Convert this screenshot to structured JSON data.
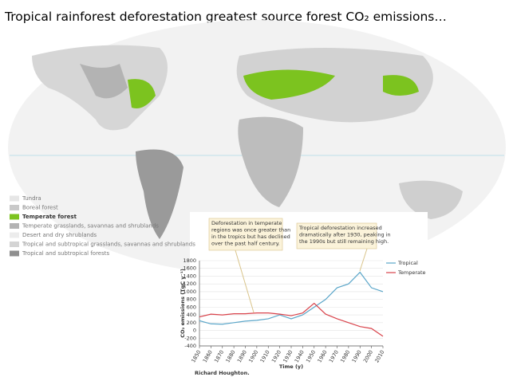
{
  "slide": {
    "title": "Tropical rainforest deforestation greatest source forest CO₂ emissions…"
  },
  "map": {
    "legend": [
      {
        "label": "Tundra",
        "color": "#e6e6e6"
      },
      {
        "label": "Boreal forest",
        "color": "#c9c9c9"
      },
      {
        "label": "Temperate forest",
        "color": "#7cc31f"
      },
      {
        "label": "Temperate grasslands, savannas and shrublands",
        "color": "#b3b3b3"
      },
      {
        "label": "Desert and dry shrublands",
        "color": "#ececec"
      },
      {
        "label": "Tropical and subtropical grasslands, savannas and shrublands",
        "color": "#d4d4d4"
      },
      {
        "label": "Tropical and subtropical forests",
        "color": "#8f8f8f"
      }
    ]
  },
  "chart_data": {
    "type": "line",
    "annotations": [
      [
        "Deforestation in temperate",
        "regions was once greater than",
        "in the tropics but has declined",
        "over the past half century."
      ],
      [
        "Tropical deforestation increased",
        "dramatically after 1930, peaking in",
        "the 1990s but still remaining high."
      ]
    ],
    "x_label": "Time (y)",
    "y_label": "CO₂ emissions (TgC y⁻¹)",
    "credit": "Richard Houghton.",
    "x": [
      1850,
      1860,
      1870,
      1880,
      1890,
      1900,
      1910,
      1920,
      1930,
      1940,
      1950,
      1960,
      1970,
      1980,
      1990,
      2000,
      2010
    ],
    "series": [
      {
        "name": "Tropical",
        "color": "#5ba6c9",
        "values": [
          250,
          170,
          160,
          200,
          240,
          260,
          300,
          400,
          300,
          400,
          600,
          800,
          1100,
          1200,
          1500,
          1100,
          1000
        ]
      },
      {
        "name": "Temperate",
        "color": "#d9434b",
        "values": [
          350,
          420,
          400,
          430,
          430,
          450,
          450,
          420,
          380,
          450,
          700,
          420,
          300,
          200,
          100,
          50,
          -150
        ]
      }
    ],
    "xlim": [
      1850,
      2010
    ],
    "xticks": [
      1850,
      1860,
      1870,
      1880,
      1890,
      1900,
      1910,
      1920,
      1930,
      1940,
      1950,
      1960,
      1970,
      1980,
      1990,
      2000,
      2010
    ],
    "ylim": [
      -400,
      1800
    ],
    "yticks": [
      -400,
      -200,
      0,
      200,
      400,
      600,
      800,
      1000,
      1200,
      1400,
      1600,
      1800
    ],
    "grid": true
  }
}
